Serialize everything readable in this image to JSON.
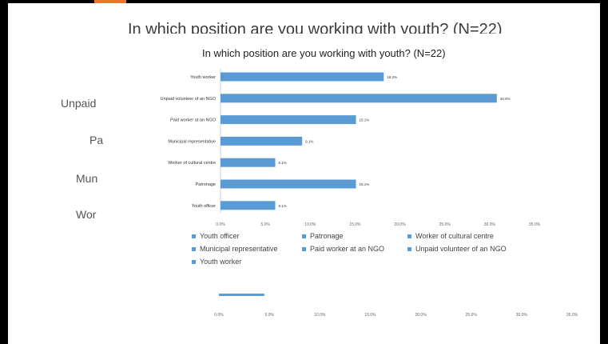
{
  "background_slide": {
    "title": "In which position are you working with youth? (N=22)",
    "labels": [
      "Unpaid",
      "Pa",
      "Mun",
      "Wor"
    ],
    "axis_ticks": [
      "0.0%",
      "5.0%",
      "10.0%",
      "15.0%",
      "20.0%",
      "25.0%",
      "30.0%",
      "35.0%"
    ],
    "bar_value": 4.5
  },
  "chart_data": {
    "type": "bar",
    "orientation": "horizontal",
    "title": "In which position are you working with youth? (N=22)",
    "categories": [
      "Youth worker",
      "Unpaid volunteer of an NGO",
      "Paid worker at an NGO",
      "Municipal representative",
      "Worker of cultural centre",
      "Patronage",
      "Youth officer"
    ],
    "values": [
      18.2,
      30.8,
      15.1,
      9.1,
      6.1,
      15.1,
      6.1
    ],
    "value_labels": [
      "18.2%",
      "30.8%",
      "15.1%",
      "9.1%",
      "6.1%",
      "15.1%",
      "6.1%"
    ],
    "xlim": [
      0,
      35
    ],
    "x_ticks": [
      "0.0%",
      "5.0%",
      "10.0%",
      "15.0%",
      "20.0%",
      "25.0%",
      "30.0%",
      "35.0%"
    ],
    "color": "#5b9bd5",
    "legend": [
      "Youth officer",
      "Patronage",
      "Worker of cultural centre",
      "Municipal representative",
      "Paid worker at an NGO",
      "Unpaid volunteer of an NGO",
      "Youth worker"
    ],
    "legend_position": "bottom"
  }
}
